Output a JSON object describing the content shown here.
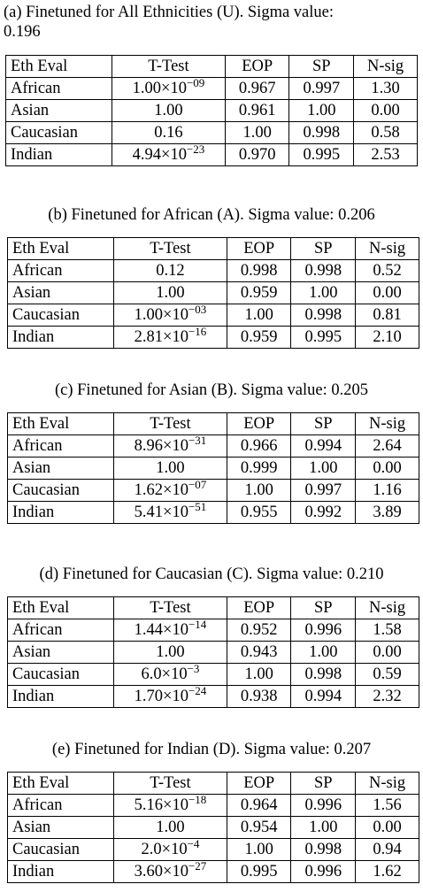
{
  "header_row": [
    "Eth Eval",
    "T-Test",
    "EOP",
    "SP",
    "N-sig"
  ],
  "tables": [
    {
      "caption_line1": "(a) Finetuned for All Ethnicities (U). Sigma value:",
      "caption_line2": "0.196",
      "rows": [
        {
          "eth": "African",
          "mant": "1.00",
          "times": "×10",
          "exp": "−09",
          "eop": "0.967",
          "sp": "0.997",
          "nsig": "1.30"
        },
        {
          "eth": "Asian",
          "mant": "1.00",
          "times": "",
          "exp": "",
          "eop": "0.961",
          "sp": "1.00",
          "nsig": "0.00"
        },
        {
          "eth": "Caucasian",
          "mant": "0.16",
          "times": "",
          "exp": "",
          "eop": "1.00",
          "sp": "0.998",
          "nsig": "0.58"
        },
        {
          "eth": "Indian",
          "mant": "4.94",
          "times": "×10",
          "exp": "−23",
          "eop": "0.970",
          "sp": "0.995",
          "nsig": "2.53"
        }
      ]
    },
    {
      "caption_line1": "(b) Finetuned for African (A). Sigma value: 0.206",
      "caption_line2": "",
      "rows": [
        {
          "eth": "African",
          "mant": "0.12",
          "times": "",
          "exp": "",
          "eop": "0.998",
          "sp": "0.998",
          "nsig": "0.52"
        },
        {
          "eth": "Asian",
          "mant": "1.00",
          "times": "",
          "exp": "",
          "eop": "0.959",
          "sp": "1.00",
          "nsig": "0.00"
        },
        {
          "eth": "Caucasian",
          "mant": "1.00",
          "times": "×10",
          "exp": "−03",
          "eop": "1.00",
          "sp": "0.998",
          "nsig": "0.81"
        },
        {
          "eth": "Indian",
          "mant": "2.81",
          "times": "×10",
          "exp": "−16",
          "eop": "0.959",
          "sp": "0.995",
          "nsig": "2.10"
        }
      ]
    },
    {
      "caption_line1": "(c) Finetuned for Asian (B). Sigma value: 0.205",
      "caption_line2": "",
      "rows": [
        {
          "eth": "African",
          "mant": "8.96",
          "times": "×10",
          "exp": "−31",
          "eop": "0.966",
          "sp": "0.994",
          "nsig": "2.64"
        },
        {
          "eth": "Asian",
          "mant": "1.00",
          "times": "",
          "exp": "",
          "eop": "0.999",
          "sp": "1.00",
          "nsig": "0.00"
        },
        {
          "eth": "Caucasian",
          "mant": "1.62",
          "times": "×10",
          "exp": "−07",
          "eop": "1.00",
          "sp": "0.997",
          "nsig": "1.16"
        },
        {
          "eth": "Indian",
          "mant": "5.41",
          "times": "×10",
          "exp": "−51",
          "eop": "0.955",
          "sp": "0.992",
          "nsig": "3.89"
        }
      ]
    },
    {
      "caption_line1": "(d) Finetuned for Caucasian (C). Sigma value: 0.210",
      "caption_line2": "",
      "rows": [
        {
          "eth": "African",
          "mant": "1.44",
          "times": "×10",
          "exp": "−14",
          "eop": "0.952",
          "sp": "0.996",
          "nsig": "1.58"
        },
        {
          "eth": "Asian",
          "mant": "1.00",
          "times": "",
          "exp": "",
          "eop": "0.943",
          "sp": "1.00",
          "nsig": "0.00"
        },
        {
          "eth": "Caucasian",
          "mant": "6.0",
          "times": "×10",
          "exp": "−3",
          "eop": "1.00",
          "sp": "0.998",
          "nsig": "0.59"
        },
        {
          "eth": "Indian",
          "mant": "1.70",
          "times": "×10",
          "exp": "−24",
          "eop": "0.938",
          "sp": "0.994",
          "nsig": "2.32"
        }
      ]
    },
    {
      "caption_line1": "(e) Finetuned for Indian (D). Sigma value: 0.207",
      "caption_line2": "",
      "rows": [
        {
          "eth": "African",
          "mant": "5.16",
          "times": "×10",
          "exp": "−18",
          "eop": "0.964",
          "sp": "0.996",
          "nsig": "1.56"
        },
        {
          "eth": "Asian",
          "mant": "1.00",
          "times": "",
          "exp": "",
          "eop": "0.954",
          "sp": "1.00",
          "nsig": "0.00"
        },
        {
          "eth": "Caucasian",
          "mant": "2.0",
          "times": "×10",
          "exp": "−4",
          "eop": "1.00",
          "sp": "0.998",
          "nsig": "0.94"
        },
        {
          "eth": "Indian",
          "mant": "3.60",
          "times": "×10",
          "exp": "−27",
          "eop": "0.995",
          "sp": "0.996",
          "nsig": "1.62"
        }
      ]
    }
  ]
}
